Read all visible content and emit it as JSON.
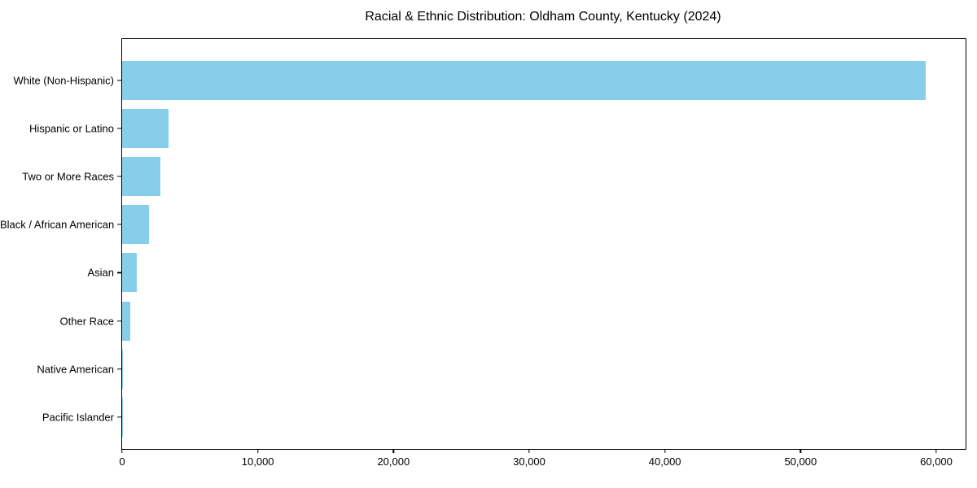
{
  "chart_data": {
    "type": "bar",
    "orientation": "horizontal",
    "title": "Racial & Ethnic Distribution: Oldham County, Kentucky (2024)",
    "categories": [
      "White (Non-Hispanic)",
      "Hispanic or Latino",
      "Two or More Races",
      "Black / African American",
      "Asian",
      "Other Race",
      "Native American",
      "Pacific Islander"
    ],
    "values": [
      59200,
      3400,
      2820,
      2000,
      1060,
      580,
      80,
      15
    ],
    "bar_color": "#87CEEB",
    "axis_color": "#000000",
    "background_color": "#ffffff",
    "xlabel": "",
    "ylabel": "",
    "xlim": [
      0,
      62160
    ],
    "xticks": [
      0,
      10000,
      20000,
      30000,
      40000,
      50000,
      60000
    ],
    "xtick_labels": [
      "0",
      "10,000",
      "20,000",
      "30,000",
      "40,000",
      "50,000",
      "60,000"
    ],
    "grid": false,
    "legend": "none"
  }
}
